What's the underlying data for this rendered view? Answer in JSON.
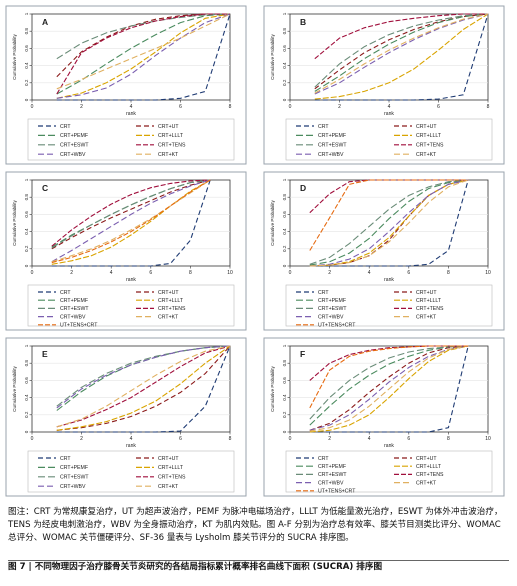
{
  "legend_colors": {
    "CRT": "#1f3b73",
    "CRT+UT": "#8b1a1a",
    "CRT+PEMF": "#4b8b5f",
    "CRT+LLLT": "#d9a400",
    "CRT+ESWT": "#6a8c78",
    "CRT+TENS": "#a00f3c",
    "CRT+WBV": "#7b5fb0",
    "CRT+KT": "#e0b060",
    "UT+TENS+CRT": "#e66a10"
  },
  "axis_text": {
    "ylabel": "Cumulative Probability",
    "xlabel": "rank"
  },
  "chart_data": [
    {
      "type": "line",
      "panel": "A",
      "xlim": [
        0,
        8
      ],
      "ylim": [
        0,
        1
      ],
      "xticks": [
        0,
        2,
        4,
        6,
        8
      ],
      "yticks": [
        "0",
        "0.2",
        "0.4",
        "0.6",
        "0.8",
        "1"
      ],
      "x": [
        1,
        2,
        3,
        4,
        5,
        6,
        7,
        8
      ],
      "series": [
        {
          "name": "CRT",
          "values": [
            0.0,
            0.0,
            0.0,
            0.0,
            0.0,
            0.02,
            0.1,
            1.0
          ]
        },
        {
          "name": "CRT+UT",
          "values": [
            0.27,
            0.56,
            0.73,
            0.86,
            0.94,
            0.98,
            1.0,
            1.0
          ]
        },
        {
          "name": "CRT+PEMF",
          "values": [
            0.07,
            0.23,
            0.42,
            0.6,
            0.76,
            0.9,
            0.98,
            1.0
          ]
        },
        {
          "name": "CRT+LLLT",
          "values": [
            0.02,
            0.08,
            0.2,
            0.36,
            0.56,
            0.78,
            0.95,
            1.0
          ]
        },
        {
          "name": "CRT+ESWT",
          "values": [
            0.48,
            0.66,
            0.78,
            0.86,
            0.92,
            0.96,
            0.99,
            1.0
          ]
        },
        {
          "name": "CRT+TENS",
          "values": [
            0.07,
            0.55,
            0.72,
            0.84,
            0.92,
            0.97,
            1.0,
            1.0
          ]
        },
        {
          "name": "CRT+WBV",
          "values": [
            0.02,
            0.06,
            0.14,
            0.3,
            0.52,
            0.72,
            0.9,
            1.0
          ]
        },
        {
          "name": "CRT+KT",
          "values": [
            0.13,
            0.24,
            0.36,
            0.48,
            0.6,
            0.72,
            0.86,
            1.0
          ]
        }
      ]
    },
    {
      "type": "line",
      "panel": "B",
      "xlim": [
        0,
        8
      ],
      "ylim": [
        0,
        1
      ],
      "xticks": [
        0,
        2,
        4,
        6,
        8
      ],
      "yticks": [
        "0",
        "0.2",
        "0.4",
        "0.6",
        "0.8",
        "1"
      ],
      "x": [
        1,
        2,
        3,
        4,
        5,
        6,
        7,
        8
      ],
      "series": [
        {
          "name": "CRT",
          "values": [
            0.0,
            0.0,
            0.0,
            0.0,
            0.0,
            0.01,
            0.06,
            1.0
          ]
        },
        {
          "name": "CRT+UT",
          "values": [
            0.13,
            0.35,
            0.55,
            0.7,
            0.82,
            0.91,
            0.97,
            1.0
          ]
        },
        {
          "name": "CRT+PEMF",
          "values": [
            0.1,
            0.28,
            0.48,
            0.65,
            0.79,
            0.9,
            0.97,
            1.0
          ]
        },
        {
          "name": "CRT+LLLT",
          "values": [
            0.01,
            0.04,
            0.1,
            0.2,
            0.36,
            0.58,
            0.82,
            1.0
          ]
        },
        {
          "name": "CRT+ESWT",
          "values": [
            0.15,
            0.42,
            0.62,
            0.76,
            0.86,
            0.93,
            0.98,
            1.0
          ]
        },
        {
          "name": "CRT+TENS",
          "values": [
            0.48,
            0.72,
            0.84,
            0.91,
            0.95,
            0.98,
            1.0,
            1.0
          ]
        },
        {
          "name": "CRT+WBV",
          "values": [
            0.07,
            0.2,
            0.38,
            0.55,
            0.7,
            0.83,
            0.93,
            1.0
          ]
        },
        {
          "name": "CRT+KT",
          "values": [
            0.08,
            0.24,
            0.42,
            0.58,
            0.72,
            0.84,
            0.94,
            1.0
          ]
        }
      ]
    },
    {
      "type": "line",
      "panel": "C",
      "xlim": [
        0,
        10
      ],
      "ylim": [
        0,
        1
      ],
      "xticks": [
        0,
        2,
        4,
        6,
        8,
        10
      ],
      "yticks": [
        "0",
        "0.2",
        "0.4",
        "0.6",
        "0.8",
        "1"
      ],
      "x": [
        1,
        2,
        3,
        4,
        5,
        6,
        7,
        8,
        9
      ],
      "series": [
        {
          "name": "CRT",
          "values": [
            0.0,
            0.0,
            0.0,
            0.0,
            0.0,
            0.0,
            0.03,
            0.3,
            1.0
          ]
        },
        {
          "name": "CRT+UT",
          "values": [
            0.2,
            0.33,
            0.45,
            0.56,
            0.66,
            0.76,
            0.86,
            0.94,
            1.0
          ]
        },
        {
          "name": "CRT+PEMF",
          "values": [
            0.22,
            0.36,
            0.48,
            0.6,
            0.71,
            0.81,
            0.9,
            0.97,
            1.0
          ]
        },
        {
          "name": "CRT+LLLT",
          "values": [
            0.02,
            0.06,
            0.12,
            0.22,
            0.36,
            0.52,
            0.7,
            0.87,
            1.0
          ]
        },
        {
          "name": "CRT+ESWT",
          "values": [
            0.21,
            0.35,
            0.48,
            0.6,
            0.71,
            0.81,
            0.9,
            0.97,
            1.0
          ]
        },
        {
          "name": "CRT+TENS",
          "values": [
            0.23,
            0.42,
            0.58,
            0.72,
            0.83,
            0.91,
            0.96,
            0.99,
            1.0
          ]
        },
        {
          "name": "CRT+WBV",
          "values": [
            0.05,
            0.18,
            0.32,
            0.46,
            0.6,
            0.73,
            0.84,
            0.93,
            1.0
          ]
        },
        {
          "name": "CRT+KT",
          "values": [
            0.05,
            0.12,
            0.2,
            0.3,
            0.42,
            0.55,
            0.7,
            0.85,
            1.0
          ]
        },
        {
          "name": "UT+TENS+CRT",
          "values": [
            0.04,
            0.1,
            0.18,
            0.28,
            0.4,
            0.54,
            0.7,
            0.86,
            1.0
          ]
        }
      ]
    },
    {
      "type": "line",
      "panel": "D",
      "xlim": [
        0,
        10
      ],
      "ylim": [
        0,
        1
      ],
      "xticks": [
        0,
        2,
        4,
        6,
        8,
        10
      ],
      "yticks": [
        "0",
        "0.2",
        "0.4",
        "0.6",
        "0.8",
        "1"
      ],
      "x": [
        1,
        2,
        3,
        4,
        5,
        6,
        7,
        8,
        9
      ],
      "series": [
        {
          "name": "CRT",
          "values": [
            0.0,
            0.0,
            0.0,
            0.0,
            0.0,
            0.0,
            0.02,
            0.18,
            1.0
          ]
        },
        {
          "name": "CRT+UT",
          "values": [
            0.0,
            0.01,
            0.04,
            0.12,
            0.3,
            0.58,
            0.82,
            0.95,
            1.0
          ]
        },
        {
          "name": "CRT+PEMF",
          "values": [
            0.01,
            0.05,
            0.15,
            0.32,
            0.55,
            0.75,
            0.9,
            0.97,
            1.0
          ]
        },
        {
          "name": "CRT+LLLT",
          "values": [
            0.0,
            0.01,
            0.05,
            0.15,
            0.33,
            0.58,
            0.82,
            0.95,
            1.0
          ]
        },
        {
          "name": "CRT+ESWT",
          "values": [
            0.02,
            0.1,
            0.26,
            0.46,
            0.66,
            0.82,
            0.92,
            0.98,
            1.0
          ]
        },
        {
          "name": "CRT+TENS",
          "values": [
            0.62,
            0.84,
            0.98,
            1.0,
            1.0,
            1.0,
            1.0,
            1.0,
            1.0
          ]
        },
        {
          "name": "CRT+WBV",
          "values": [
            0.0,
            0.02,
            0.08,
            0.2,
            0.4,
            0.62,
            0.82,
            0.95,
            1.0
          ]
        },
        {
          "name": "CRT+KT",
          "values": [
            0.0,
            0.01,
            0.04,
            0.12,
            0.28,
            0.5,
            0.74,
            0.92,
            1.0
          ]
        },
        {
          "name": "UT+TENS+CRT",
          "values": [
            0.18,
            0.56,
            0.95,
            1.0,
            1.0,
            1.0,
            1.0,
            1.0,
            1.0
          ]
        }
      ]
    },
    {
      "type": "line",
      "panel": "E",
      "xlim": [
        0,
        8
      ],
      "ylim": [
        0,
        1
      ],
      "xticks": [
        0,
        2,
        4,
        6,
        8
      ],
      "yticks": [
        "0",
        "0.2",
        "0.4",
        "0.6",
        "0.8",
        "1"
      ],
      "x": [
        1,
        2,
        3,
        4,
        5,
        6,
        7,
        8
      ],
      "series": [
        {
          "name": "CRT",
          "values": [
            0.0,
            0.0,
            0.0,
            0.0,
            0.0,
            0.01,
            0.3,
            1.0
          ]
        },
        {
          "name": "CRT+UT",
          "values": [
            0.02,
            0.05,
            0.1,
            0.18,
            0.3,
            0.46,
            0.68,
            1.0
          ]
        },
        {
          "name": "CRT+PEMF",
          "values": [
            0.25,
            0.47,
            0.65,
            0.78,
            0.87,
            0.94,
            0.98,
            1.0
          ]
        },
        {
          "name": "CRT+LLLT",
          "values": [
            0.02,
            0.06,
            0.12,
            0.22,
            0.36,
            0.56,
            0.8,
            1.0
          ]
        },
        {
          "name": "CRT+ESWT",
          "values": [
            0.3,
            0.52,
            0.68,
            0.8,
            0.88,
            0.94,
            0.98,
            1.0
          ]
        },
        {
          "name": "CRT+TENS",
          "values": [
            0.06,
            0.14,
            0.26,
            0.4,
            0.58,
            0.76,
            0.92,
            1.0
          ]
        },
        {
          "name": "CRT+WBV",
          "values": [
            0.28,
            0.5,
            0.66,
            0.78,
            0.87,
            0.94,
            0.98,
            1.0
          ]
        },
        {
          "name": "CRT+KT",
          "values": [
            0.06,
            0.15,
            0.3,
            0.48,
            0.66,
            0.82,
            0.94,
            1.0
          ]
        }
      ]
    },
    {
      "type": "line",
      "panel": "F",
      "xlim": [
        0,
        10
      ],
      "ylim": [
        0,
        1
      ],
      "xticks": [
        0,
        2,
        4,
        6,
        8,
        10
      ],
      "yticks": [
        "0",
        "0.2",
        "0.4",
        "0.6",
        "0.8",
        "1"
      ],
      "x": [
        1,
        2,
        3,
        4,
        5,
        6,
        7,
        8,
        9
      ],
      "series": [
        {
          "name": "CRT",
          "values": [
            0.0,
            0.0,
            0.0,
            0.0,
            0.0,
            0.0,
            0.0,
            0.05,
            1.0
          ]
        },
        {
          "name": "CRT+UT",
          "values": [
            0.02,
            0.1,
            0.26,
            0.46,
            0.64,
            0.8,
            0.92,
            0.98,
            1.0
          ]
        },
        {
          "name": "CRT+PEMF",
          "values": [
            0.08,
            0.3,
            0.5,
            0.66,
            0.79,
            0.88,
            0.95,
            0.99,
            1.0
          ]
        },
        {
          "name": "CRT+LLLT",
          "values": [
            0.0,
            0.02,
            0.08,
            0.2,
            0.4,
            0.62,
            0.82,
            0.95,
            1.0
          ]
        },
        {
          "name": "CRT+ESWT",
          "values": [
            0.15,
            0.4,
            0.6,
            0.75,
            0.86,
            0.93,
            0.97,
            0.99,
            1.0
          ]
        },
        {
          "name": "CRT+TENS",
          "values": [
            0.6,
            0.8,
            0.9,
            0.95,
            0.98,
            0.99,
            1.0,
            1.0,
            1.0
          ]
        },
        {
          "name": "CRT+WBV",
          "values": [
            0.02,
            0.08,
            0.2,
            0.38,
            0.58,
            0.75,
            0.88,
            0.96,
            1.0
          ]
        },
        {
          "name": "CRT+KT",
          "values": [
            0.01,
            0.05,
            0.14,
            0.3,
            0.5,
            0.7,
            0.86,
            0.96,
            1.0
          ]
        },
        {
          "name": "UT+TENS+CRT",
          "values": [
            0.28,
            0.72,
            0.88,
            0.94,
            0.97,
            0.99,
            1.0,
            1.0,
            1.0
          ]
        }
      ]
    }
  ],
  "caption": {
    "body": "图注：CRT 为常规康复治疗，UT 为超声波治疗，PEMF 为脉冲电磁场治疗，LLLT 为低能量激光治疗，ESWT 为体外冲击波治疗，TENS 为经皮电刺激治疗，WBV 为全身振动治疗，KT 为肌内效贴。图 A-F 分别为治疗总有效率、膝关节目测类比评分、WOMAC 总评分、WOMAC 关节僵硬评分、SF-36 量表与 Lysholm 膝关节评分的 SUCRA 排序图。",
    "title": "图 7 | 不同物理因子治疗膝骨关节炎研究的各结局指标累计概率排名曲线下面积 (SUCRA) 排序图"
  }
}
